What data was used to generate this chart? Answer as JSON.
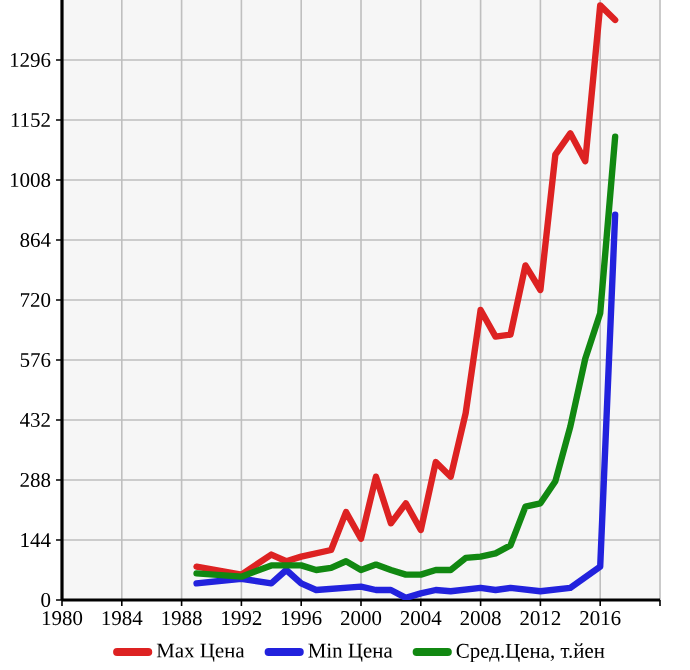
{
  "chart_data": {
    "type": "line",
    "xlim": [
      1980,
      2020
    ],
    "ylim": [
      0,
      1440
    ],
    "xticks": [
      1980,
      1984,
      1988,
      1992,
      1996,
      2000,
      2004,
      2008,
      2012,
      2016,
      {
        "value": 2020,
        "label": null
      }
    ],
    "yticks": [
      0,
      144,
      288,
      432,
      576,
      720,
      864,
      1008,
      1152,
      1296
    ],
    "grid": true,
    "legend": "bottom",
    "line_style": "solid",
    "marker": "none",
    "series": [
      {
        "name": "Max Цена",
        "color": "#dd2222",
        "x": [
          1989,
          1992,
          1994,
          1995,
          1996,
          1998,
          1999,
          2000,
          2001,
          2002,
          2003,
          2004,
          2005,
          2006,
          2007,
          2008,
          2009,
          2010,
          2011,
          2012,
          2013,
          2014,
          2015,
          2016,
          2017
        ],
        "values": [
          80,
          61,
          109,
          93,
          104,
          120,
          211,
          147,
          296,
          184,
          232,
          168,
          331,
          296,
          448,
          696,
          632,
          637,
          803,
          744,
          1069,
          1120,
          1053,
          1427,
          1392
        ]
      },
      {
        "name": "Min Цена",
        "color": "#2222dd",
        "x": [
          1989,
          1992,
          1994,
          1995,
          1996,
          1997,
          2000,
          2001,
          2002,
          2003,
          2004,
          2005,
          2006,
          2008,
          2009,
          2010,
          2012,
          2014,
          2016,
          2017
        ],
        "values": [
          40,
          51,
          40,
          72,
          40,
          24,
          32,
          24,
          24,
          5,
          16,
          24,
          21,
          29,
          24,
          29,
          21,
          29,
          80,
          925
        ]
      },
      {
        "name": "Сред.Цена, т.йен",
        "color": "#118811",
        "x": [
          1989,
          1992,
          1994,
          1996,
          1997,
          1998,
          1999,
          2000,
          2001,
          2002,
          2003,
          2004,
          2005,
          2006,
          2007,
          2008,
          2009,
          2010,
          2011,
          2012,
          2013,
          2014,
          2015,
          2016,
          2017
        ],
        "values": [
          64,
          56,
          83,
          83,
          72,
          77,
          93,
          72,
          85,
          72,
          61,
          61,
          72,
          72,
          101,
          104,
          112,
          131,
          224,
          232,
          285,
          416,
          579,
          688,
          1112
        ]
      }
    ]
  }
}
